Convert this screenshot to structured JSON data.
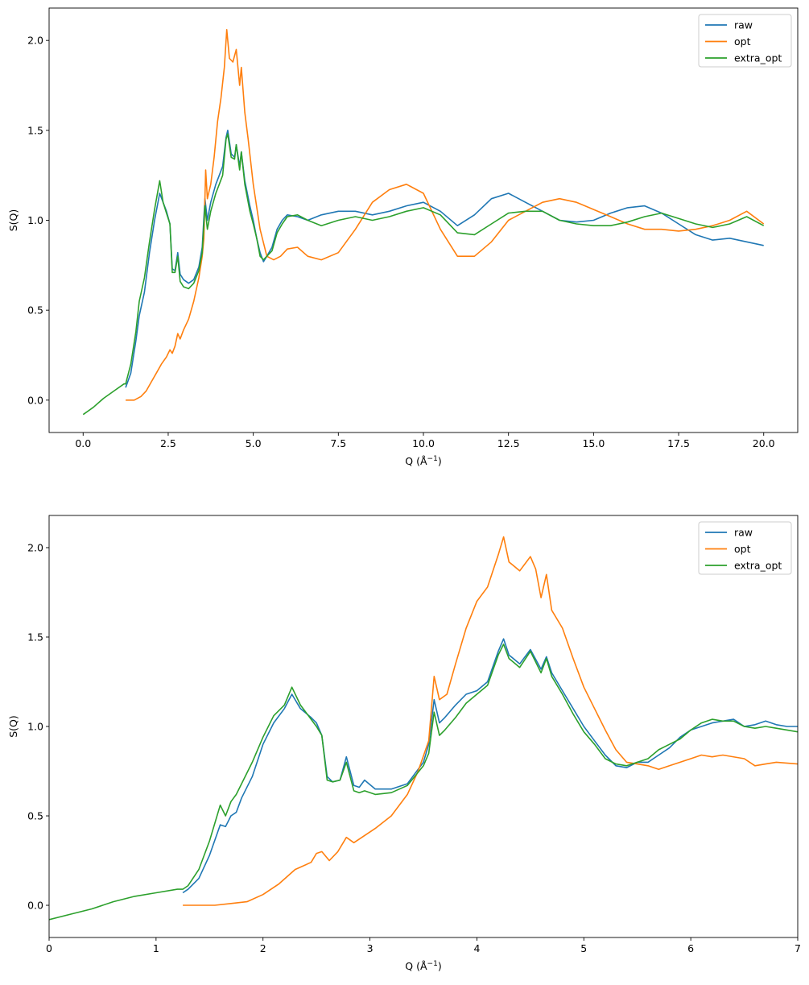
{
  "chart_data": [
    {
      "type": "line",
      "xlabel": "Q (Å",
      "xlabel_sup": "−1",
      "xlabel_close": ")",
      "ylabel": "S(Q)",
      "xlim": [
        -1.0,
        21.0
      ],
      "ylim": [
        -0.18,
        2.18
      ],
      "xticks": [
        0.0,
        2.5,
        5.0,
        7.5,
        10.0,
        12.5,
        15.0,
        17.5,
        20.0
      ],
      "xtick_labels": [
        "0.0",
        "2.5",
        "5.0",
        "7.5",
        "10.0",
        "12.5",
        "15.0",
        "17.5",
        "20.0"
      ],
      "yticks": [
        0.0,
        0.5,
        1.0,
        1.5,
        2.0
      ],
      "ytick_labels": [
        "0.0",
        "0.5",
        "1.0",
        "1.5",
        "2.0"
      ],
      "grid": false,
      "legend": "top-right",
      "series": [
        {
          "name": "raw",
          "color": "#1f77b4",
          "x": [
            1.25,
            1.4,
            1.55,
            1.65,
            1.8,
            1.95,
            2.1,
            2.25,
            2.35,
            2.45,
            2.55,
            2.62,
            2.7,
            2.78,
            2.85,
            2.95,
            3.1,
            3.25,
            3.4,
            3.5,
            3.58,
            3.65,
            3.75,
            3.9,
            4.0,
            4.1,
            4.2,
            4.25,
            4.35,
            4.45,
            4.5,
            4.6,
            4.65,
            4.75,
            4.9,
            5.0,
            5.1,
            5.2,
            5.3,
            5.4,
            5.55,
            5.7,
            5.85,
            6.0,
            6.3,
            6.6,
            7.0,
            7.5,
            8.0,
            8.5,
            9.0,
            9.5,
            10.0,
            10.5,
            11.0,
            11.5,
            12.0,
            12.5,
            13.0,
            13.5,
            14.0,
            14.5,
            15.0,
            15.5,
            16.0,
            16.5,
            17.0,
            17.5,
            18.0,
            18.5,
            19.0,
            19.5,
            20.0
          ],
          "y": [
            0.07,
            0.15,
            0.33,
            0.47,
            0.6,
            0.82,
            1.0,
            1.15,
            1.1,
            1.05,
            0.98,
            0.73,
            0.72,
            0.82,
            0.7,
            0.67,
            0.65,
            0.67,
            0.74,
            0.85,
            1.12,
            1.0,
            1.1,
            1.2,
            1.25,
            1.3,
            1.46,
            1.5,
            1.37,
            1.35,
            1.42,
            1.3,
            1.38,
            1.22,
            1.08,
            1.0,
            0.9,
            0.82,
            0.77,
            0.8,
            0.85,
            0.95,
            1.0,
            1.03,
            1.02,
            1.0,
            1.03,
            1.05,
            1.05,
            1.03,
            1.05,
            1.08,
            1.1,
            1.05,
            0.97,
            1.03,
            1.12,
            1.15,
            1.1,
            1.05,
            1.0,
            0.99,
            1.0,
            1.04,
            1.07,
            1.08,
            1.04,
            0.98,
            0.92,
            0.89,
            0.9,
            0.88,
            0.86
          ]
        },
        {
          "name": "opt",
          "color": "#ff7f0e",
          "x": [
            1.25,
            1.5,
            1.7,
            1.85,
            2.0,
            2.15,
            2.3,
            2.45,
            2.55,
            2.62,
            2.7,
            2.78,
            2.85,
            2.95,
            3.1,
            3.25,
            3.4,
            3.5,
            3.55,
            3.6,
            3.65,
            3.75,
            3.85,
            3.95,
            4.05,
            4.15,
            4.22,
            4.3,
            4.4,
            4.5,
            4.6,
            4.65,
            4.75,
            4.85,
            5.0,
            5.2,
            5.4,
            5.6,
            5.8,
            6.0,
            6.3,
            6.6,
            7.0,
            7.5,
            8.0,
            8.5,
            9.0,
            9.5,
            10.0,
            10.5,
            11.0,
            11.5,
            12.0,
            12.5,
            13.0,
            13.5,
            14.0,
            14.5,
            15.0,
            15.5,
            16.0,
            16.5,
            17.0,
            17.5,
            18.0,
            18.5,
            19.0,
            19.5,
            20.0
          ],
          "y": [
            0.0,
            0.0,
            0.02,
            0.05,
            0.1,
            0.15,
            0.2,
            0.24,
            0.28,
            0.26,
            0.3,
            0.37,
            0.34,
            0.39,
            0.45,
            0.55,
            0.68,
            0.8,
            0.9,
            1.28,
            1.12,
            1.2,
            1.35,
            1.55,
            1.68,
            1.85,
            2.06,
            1.9,
            1.88,
            1.95,
            1.75,
            1.85,
            1.6,
            1.45,
            1.2,
            0.95,
            0.8,
            0.78,
            0.8,
            0.84,
            0.85,
            0.8,
            0.78,
            0.82,
            0.95,
            1.1,
            1.17,
            1.2,
            1.15,
            0.95,
            0.8,
            0.8,
            0.88,
            1.0,
            1.05,
            1.1,
            1.12,
            1.1,
            1.06,
            1.02,
            0.98,
            0.95,
            0.95,
            0.94,
            0.95,
            0.97,
            1.0,
            1.05,
            0.98
          ]
        },
        {
          "name": "extra_opt",
          "color": "#2ca02c",
          "x": [
            0.0,
            0.3,
            0.6,
            0.9,
            1.2,
            1.25,
            1.4,
            1.55,
            1.65,
            1.8,
            1.95,
            2.1,
            2.25,
            2.35,
            2.45,
            2.55,
            2.62,
            2.7,
            2.78,
            2.85,
            2.95,
            3.1,
            3.25,
            3.4,
            3.5,
            3.58,
            3.65,
            3.75,
            3.9,
            4.0,
            4.1,
            4.2,
            4.25,
            4.35,
            4.45,
            4.5,
            4.6,
            4.65,
            4.75,
            4.9,
            5.0,
            5.1,
            5.2,
            5.3,
            5.4,
            5.55,
            5.7,
            5.85,
            6.0,
            6.3,
            6.6,
            7.0,
            7.5,
            8.0,
            8.5,
            9.0,
            9.5,
            10.0,
            10.5,
            11.0,
            11.5,
            12.0,
            12.5,
            13.0,
            13.5,
            14.0,
            14.5,
            15.0,
            15.5,
            16.0,
            16.5,
            17.0,
            17.5,
            18.0,
            18.5,
            19.0,
            19.5,
            20.0
          ],
          "y": [
            -0.08,
            -0.04,
            0.01,
            0.05,
            0.09,
            0.09,
            0.2,
            0.38,
            0.55,
            0.68,
            0.88,
            1.06,
            1.22,
            1.1,
            1.04,
            0.98,
            0.71,
            0.71,
            0.8,
            0.66,
            0.63,
            0.62,
            0.65,
            0.72,
            0.82,
            1.08,
            0.95,
            1.05,
            1.15,
            1.2,
            1.25,
            1.45,
            1.48,
            1.35,
            1.34,
            1.42,
            1.28,
            1.38,
            1.2,
            1.05,
            0.98,
            0.9,
            0.8,
            0.78,
            0.8,
            0.83,
            0.93,
            0.98,
            1.02,
            1.03,
            1.0,
            0.97,
            1.0,
            1.02,
            1.0,
            1.02,
            1.05,
            1.07,
            1.03,
            0.93,
            0.92,
            0.98,
            1.04,
            1.05,
            1.05,
            1.0,
            0.98,
            0.97,
            0.97,
            0.99,
            1.02,
            1.04,
            1.01,
            0.98,
            0.96,
            0.98,
            1.02,
            0.97
          ]
        }
      ]
    },
    {
      "type": "line",
      "xlabel": "Q (Å",
      "xlabel_sup": "−1",
      "xlabel_close": ")",
      "ylabel": "S(Q)",
      "xlim": [
        0.0,
        7.0
      ],
      "ylim": [
        -0.18,
        2.18
      ],
      "xticks": [
        0,
        1,
        2,
        3,
        4,
        5,
        6,
        7
      ],
      "xtick_labels": [
        "0",
        "1",
        "2",
        "3",
        "4",
        "5",
        "6",
        "7"
      ],
      "yticks": [
        0.0,
        0.5,
        1.0,
        1.5,
        2.0
      ],
      "ytick_labels": [
        "0.0",
        "0.5",
        "1.0",
        "1.5",
        "2.0"
      ],
      "grid": false,
      "legend": "top-right",
      "series": [
        {
          "name": "raw",
          "color": "#1f77b4",
          "x": [
            1.25,
            1.3,
            1.4,
            1.5,
            1.6,
            1.65,
            1.7,
            1.75,
            1.8,
            1.9,
            2.0,
            2.1,
            2.2,
            2.27,
            2.35,
            2.45,
            2.5,
            2.55,
            2.6,
            2.65,
            2.72,
            2.78,
            2.85,
            2.9,
            2.95,
            3.05,
            3.2,
            3.35,
            3.5,
            3.55,
            3.6,
            3.65,
            3.7,
            3.8,
            3.9,
            4.0,
            4.1,
            4.2,
            4.25,
            4.3,
            4.4,
            4.5,
            4.6,
            4.65,
            4.7,
            4.8,
            4.9,
            5.0,
            5.1,
            5.2,
            5.3,
            5.4,
            5.5,
            5.6,
            5.7,
            5.8,
            5.9,
            6.0,
            6.1,
            6.2,
            6.3,
            6.4,
            6.5,
            6.6,
            6.7,
            6.8,
            6.9,
            7.0
          ],
          "y": [
            0.07,
            0.09,
            0.15,
            0.28,
            0.45,
            0.44,
            0.5,
            0.52,
            0.6,
            0.72,
            0.9,
            1.02,
            1.1,
            1.18,
            1.1,
            1.05,
            1.02,
            0.95,
            0.72,
            0.69,
            0.7,
            0.83,
            0.67,
            0.66,
            0.7,
            0.65,
            0.65,
            0.68,
            0.8,
            0.9,
            1.15,
            1.02,
            1.05,
            1.12,
            1.18,
            1.2,
            1.25,
            1.42,
            1.49,
            1.4,
            1.35,
            1.43,
            1.32,
            1.39,
            1.3,
            1.2,
            1.1,
            1.0,
            0.92,
            0.84,
            0.78,
            0.77,
            0.8,
            0.8,
            0.84,
            0.88,
            0.94,
            0.98,
            1.0,
            1.02,
            1.03,
            1.04,
            1.0,
            1.01,
            1.03,
            1.01,
            1.0,
            1.0
          ]
        },
        {
          "name": "opt",
          "color": "#ff7f0e",
          "x": [
            1.25,
            1.4,
            1.55,
            1.7,
            1.85,
            2.0,
            2.15,
            2.3,
            2.45,
            2.5,
            2.55,
            2.62,
            2.7,
            2.78,
            2.85,
            2.95,
            3.05,
            3.2,
            3.35,
            3.45,
            3.55,
            3.6,
            3.65,
            3.72,
            3.8,
            3.9,
            4.0,
            4.1,
            4.2,
            4.25,
            4.3,
            4.4,
            4.5,
            4.55,
            4.6,
            4.65,
            4.7,
            4.8,
            4.9,
            5.0,
            5.1,
            5.2,
            5.3,
            5.4,
            5.5,
            5.6,
            5.7,
            5.8,
            5.9,
            6.0,
            6.1,
            6.2,
            6.3,
            6.5,
            6.6,
            6.7,
            6.8,
            7.0
          ],
          "y": [
            0.0,
            0.0,
            0.0,
            0.01,
            0.02,
            0.06,
            0.12,
            0.2,
            0.24,
            0.29,
            0.3,
            0.25,
            0.3,
            0.38,
            0.35,
            0.39,
            0.43,
            0.5,
            0.62,
            0.75,
            0.92,
            1.28,
            1.15,
            1.18,
            1.35,
            1.55,
            1.7,
            1.78,
            1.96,
            2.06,
            1.92,
            1.87,
            1.95,
            1.88,
            1.72,
            1.85,
            1.65,
            1.55,
            1.38,
            1.22,
            1.1,
            0.98,
            0.87,
            0.8,
            0.79,
            0.78,
            0.76,
            0.78,
            0.8,
            0.82,
            0.84,
            0.83,
            0.84,
            0.82,
            0.78,
            0.79,
            0.8,
            0.79
          ]
        },
        {
          "name": "extra_opt",
          "color": "#2ca02c",
          "x": [
            0.0,
            0.2,
            0.4,
            0.6,
            0.8,
            1.0,
            1.2,
            1.25,
            1.3,
            1.4,
            1.5,
            1.6,
            1.65,
            1.7,
            1.75,
            1.8,
            1.9,
            2.0,
            2.1,
            2.2,
            2.27,
            2.35,
            2.45,
            2.5,
            2.55,
            2.6,
            2.65,
            2.72,
            2.78,
            2.85,
            2.9,
            2.95,
            3.05,
            3.2,
            3.35,
            3.5,
            3.55,
            3.6,
            3.65,
            3.7,
            3.8,
            3.9,
            4.0,
            4.1,
            4.2,
            4.25,
            4.3,
            4.4,
            4.5,
            4.6,
            4.65,
            4.7,
            4.8,
            4.9,
            5.0,
            5.1,
            5.2,
            5.3,
            5.4,
            5.5,
            5.6,
            5.7,
            5.8,
            5.9,
            6.0,
            6.1,
            6.2,
            6.3,
            6.4,
            6.5,
            6.6,
            6.7,
            6.8,
            6.9,
            7.0
          ],
          "y": [
            -0.08,
            -0.05,
            -0.02,
            0.02,
            0.05,
            0.07,
            0.09,
            0.09,
            0.11,
            0.2,
            0.36,
            0.56,
            0.5,
            0.58,
            0.62,
            0.68,
            0.8,
            0.94,
            1.06,
            1.12,
            1.22,
            1.12,
            1.04,
            1.0,
            0.95,
            0.7,
            0.69,
            0.7,
            0.8,
            0.64,
            0.63,
            0.64,
            0.62,
            0.63,
            0.67,
            0.78,
            0.85,
            1.08,
            0.95,
            0.98,
            1.05,
            1.13,
            1.18,
            1.23,
            1.4,
            1.46,
            1.38,
            1.33,
            1.42,
            1.3,
            1.38,
            1.28,
            1.18,
            1.07,
            0.97,
            0.9,
            0.82,
            0.79,
            0.78,
            0.8,
            0.82,
            0.87,
            0.9,
            0.93,
            0.98,
            1.02,
            1.04,
            1.03,
            1.03,
            1.0,
            0.99,
            1.0,
            0.99,
            0.98,
            0.97
          ]
        }
      ]
    }
  ]
}
